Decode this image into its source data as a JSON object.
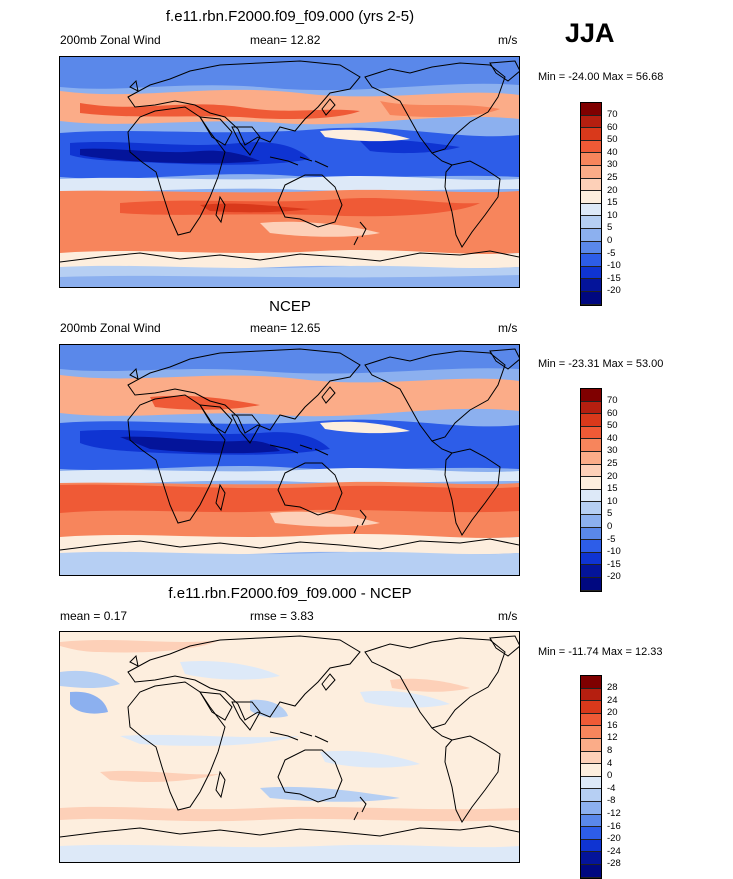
{
  "season_label": "JJA",
  "panels": [
    {
      "title": "f.e11.rbn.F2000.f09_f09.000 (yrs 2-5)",
      "left_label": "200mb Zonal Wind",
      "center_label": "mean=  12.82",
      "right_label": "m/s",
      "minmax": "Min = -24.00 Max =  56.68",
      "legend": {
        "labels": [
          "70",
          "60",
          "50",
          "40",
          "30",
          "25",
          "20",
          "15",
          "10",
          "5",
          "0",
          "-5",
          "-10",
          "-15",
          "-20"
        ],
        "colors": [
          "#7f0000",
          "#b51f10",
          "#d9391b",
          "#ef5a36",
          "#f7855c",
          "#fbac88",
          "#fdd0b8",
          "#fdeede",
          "#dde9f8",
          "#b6cff3",
          "#8cb0ef",
          "#5a88ea",
          "#2d5de8",
          "#0f34d2",
          "#04149a",
          "#000880"
        ]
      }
    },
    {
      "title": "NCEP",
      "left_label": "200mb Zonal Wind",
      "center_label": "mean=  12.65",
      "right_label": "m/s",
      "minmax": "Min = -23.31 Max =  53.00",
      "legend": {
        "labels": [
          "70",
          "60",
          "50",
          "40",
          "30",
          "25",
          "20",
          "15",
          "10",
          "5",
          "0",
          "-5",
          "-10",
          "-15",
          "-20"
        ],
        "colors": [
          "#7f0000",
          "#b51f10",
          "#d9391b",
          "#ef5a36",
          "#f7855c",
          "#fbac88",
          "#fdd0b8",
          "#fdeede",
          "#dde9f8",
          "#b6cff3",
          "#8cb0ef",
          "#5a88ea",
          "#2d5de8",
          "#0f34d2",
          "#04149a",
          "#000880"
        ]
      }
    },
    {
      "title": "f.e11.rbn.F2000.f09_f09.000 - NCEP",
      "left_label": "mean =  0.17",
      "center_label": "rmse =   3.83",
      "right_label": "m/s",
      "minmax": "Min = -11.74 Max =  12.33",
      "legend": {
        "labels": [
          "28",
          "24",
          "20",
          "16",
          "12",
          "8",
          "4",
          "0",
          "-4",
          "-8",
          "-12",
          "-16",
          "-20",
          "-24",
          "-28"
        ],
        "colors": [
          "#7f0000",
          "#b51f10",
          "#d9391b",
          "#ef5a36",
          "#f7855c",
          "#fbac88",
          "#fdd0b8",
          "#fdeede",
          "#dde9f8",
          "#b6cff3",
          "#8cb0ef",
          "#5a88ea",
          "#2d5de8",
          "#0f34d2",
          "#04149a",
          "#000880"
        ]
      }
    }
  ]
}
